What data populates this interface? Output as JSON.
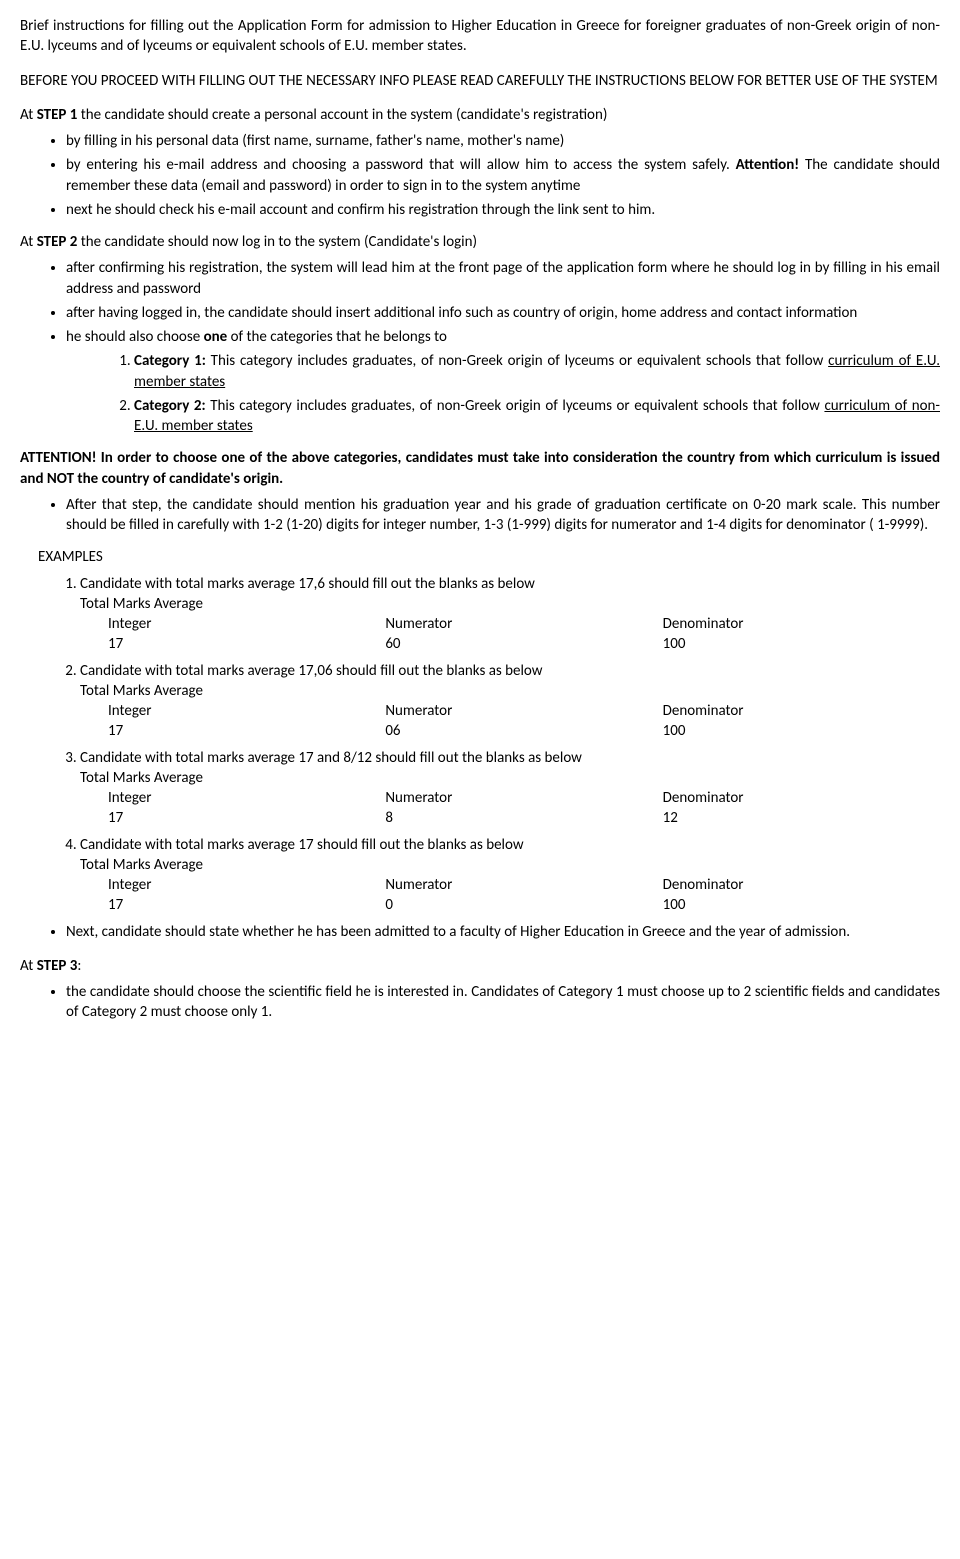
{
  "title": "Brief instructions for filling out the Application Form for admission to Higher Education in Greece for foreigner graduates of non-Greek origin of non-E.U. lyceums and of lyceums or equivalent schools of E.U. member states.",
  "before_line": "BEFORE YOU PROCEED WITH FILLING OUT THE NECESSARY INFO PLEASE READ CAREFULLY THE INSTRUCTIONS BELOW FOR BETTER USE OF THE SYSTEM",
  "step1_pre": "At ",
  "step1_bold": "STEP 1",
  "step1_post": " the candidate should create a personal account in the system (candidate's registration)",
  "step1_bullets": {
    "b1": "by filling in his personal data (first name, surname, father's name, mother's name)",
    "b2_a": "by entering his e-mail address and choosing a password that will allow him to access the system safely. ",
    "b2_bold": "Attention!",
    "b2_b": " The candidate should remember these data (email and password) in order to sign in to the system anytime",
    "b3": "next he should check his e-mail account and confirm his registration through the link sent to him."
  },
  "step2_pre": "At ",
  "step2_bold": "STEP 2",
  "step2_post": " the candidate should now log in to the system (Candidate's login)",
  "step2_bullets": {
    "b1": "after confirming his registration, the system will lead him at the front page of the application form where he should log in by filling in his email address and password",
    "b2": "after having logged in, the candidate should insert additional info such as country of origin, home address and contact information",
    "b3_a": "he should also choose ",
    "b3_bold": "one",
    "b3_b": " of the categories that he belongs to"
  },
  "cat": {
    "c1_bold": "Category 1:",
    "c1_text": " This category includes graduates, of non-Greek origin of lyceums or equivalent schools that follow ",
    "c1_under": "curriculum of E.U. member states",
    "c2_bold": "Category 2:",
    "c2_text": " This category includes graduates, of non-Greek origin of lyceums or equivalent schools that follow ",
    "c2_under": "curriculum of non-E.U. member states"
  },
  "attention": "ATTENTION! In order to choose one of the above categories, candidates must take into consideration the country from which curriculum is issued and NOT the country of candidate's origin.",
  "after_bullet": "After that step, the candidate should mention his graduation year and his grade of graduation certificate on 0-20 mark scale. This number should be filled in carefully with 1-2 (1-20) digits for integer number, 1-3 (1-999) digits for numerator and 1-4 digits for denominator ( 1-9999).",
  "examples_label": "EXAMPLES",
  "hdr": {
    "integer": "Integer",
    "numerator": "Numerator",
    "denominator": "Denominator",
    "tma": "Total Marks Average"
  },
  "ex1": {
    "line": "Candidate with total marks average 17,6 should fill out the blanks as below",
    "int": "17",
    "num": "60",
    "den": "100"
  },
  "ex2": {
    "line": "Candidate with total marks average 17,06 should fill out the blanks as below",
    "int": "17",
    "num": "06",
    "den": "100"
  },
  "ex3": {
    "line": "Candidate with total marks average 17 and 8/12 should fill out the blanks as below",
    "int": "17",
    "num": "8",
    "den": "12"
  },
  "ex4": {
    "line": "Candidate with total marks average 17 should fill out the blanks as below",
    "int": "17",
    "num": "0",
    "den": "100"
  },
  "next_bullet": "Next, candidate should state whether he has been admitted to a faculty of Higher Education in Greece and the year of admission.",
  "step3_pre": "At ",
  "step3_bold": "STEP 3",
  "step3_colon": ":",
  "step3_bullet": "the candidate should choose the scientific field he is interested in. Candidates of Category 1 must choose up to 2 scientific fields and candidates of Category 2 must choose only 1."
}
